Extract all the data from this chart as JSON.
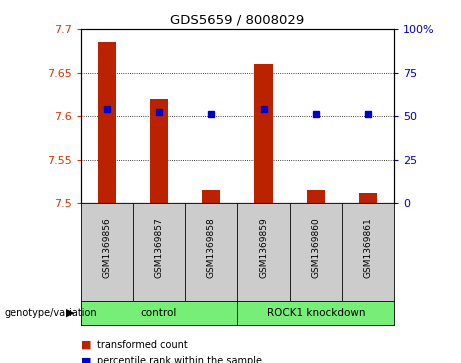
{
  "title": "GDS5659 / 8008029",
  "samples": [
    "GSM1369856",
    "GSM1369857",
    "GSM1369858",
    "GSM1369859",
    "GSM1369860",
    "GSM1369861"
  ],
  "bar_values": [
    7.685,
    7.62,
    7.515,
    7.66,
    7.515,
    7.512
  ],
  "percentile_values": [
    7.608,
    7.605,
    7.602,
    7.608,
    7.603,
    7.603
  ],
  "bar_color": "#bb2200",
  "percentile_color": "#0000cc",
  "y_min": 7.5,
  "y_max": 7.7,
  "y_ticks": [
    7.5,
    7.55,
    7.6,
    7.65,
    7.7
  ],
  "y_tick_labels": [
    "7.5",
    "7.55",
    "7.6",
    "7.65",
    "7.7"
  ],
  "y2_ticks": [
    0,
    25,
    50,
    75,
    100
  ],
  "y2_tick_labels": [
    "0",
    "25",
    "50",
    "75",
    "100%"
  ],
  "groups": [
    {
      "label": "control",
      "indices": [
        0,
        1,
        2
      ],
      "color": "#77ee77"
    },
    {
      "label": "ROCK1 knockdown",
      "indices": [
        3,
        4,
        5
      ],
      "color": "#77ee77"
    }
  ],
  "genotype_label": "genotype/variation",
  "legend_items": [
    {
      "color": "#bb2200",
      "label": "transformed count"
    },
    {
      "color": "#0000cc",
      "label": "percentile rank within the sample"
    }
  ],
  "background_color": "#ffffff",
  "cell_bg_color": "#cccccc",
  "bar_width": 0.35
}
